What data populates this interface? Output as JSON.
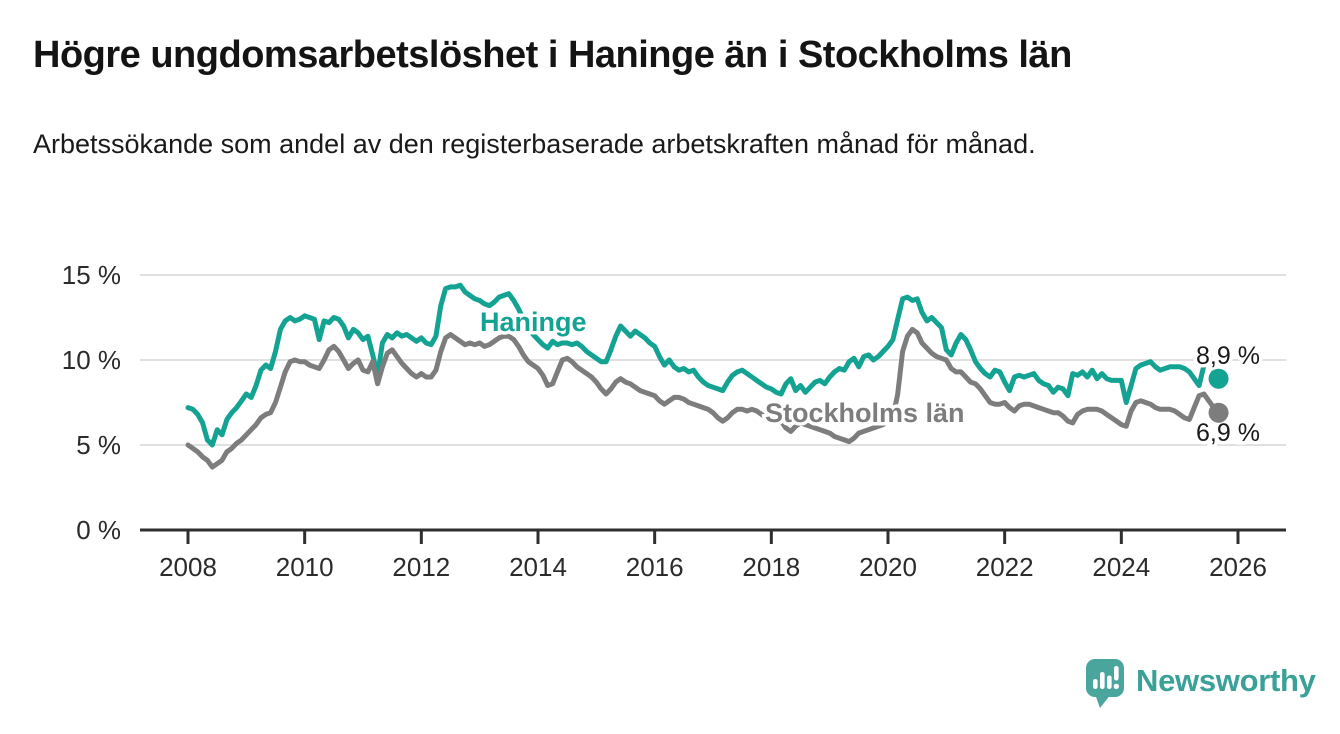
{
  "header": {
    "title": "Högre ungdomsarbetslöshet i Haninge än i Stockholms län",
    "subtitle": "Arbetssökande som andel av den registerbaserade arbetskraften månad för månad."
  },
  "footer": {
    "logo_text": "Newsworthy",
    "logo_icon": "speech-bubble-bar-chart-exclamation",
    "logo_color": "#4aa59d"
  },
  "chart_data": {
    "type": "line",
    "unit": "%",
    "frequency": "monthly",
    "x_start": "2008-01",
    "x_end": "2025-09",
    "xlim": [
      2007.2,
      2026.8
    ],
    "ylim": [
      0,
      15.5
    ],
    "grid": "horizontal",
    "legend": "inline-labels",
    "y_ticks": [
      {
        "value": 0,
        "label": "0 %"
      },
      {
        "value": 5,
        "label": "5 %"
      },
      {
        "value": 10,
        "label": "10 %"
      },
      {
        "value": 15,
        "label": "15 %"
      }
    ],
    "x_ticks": [
      {
        "year": 2008,
        "label": "2008"
      },
      {
        "year": 2010,
        "label": "2010"
      },
      {
        "year": 2012,
        "label": "2012"
      },
      {
        "year": 2014,
        "label": "2014"
      },
      {
        "year": 2016,
        "label": "2016"
      },
      {
        "year": 2018,
        "label": "2018"
      },
      {
        "year": 2020,
        "label": "2020"
      },
      {
        "year": 2022,
        "label": "2022"
      },
      {
        "year": 2024,
        "label": "2024"
      },
      {
        "year": 2026,
        "label": "2026"
      }
    ],
    "series_labels": [
      {
        "text": "Haninge"
      },
      {
        "text": "Stockholms län"
      }
    ],
    "series": [
      {
        "name": "Haninge",
        "color": "#14a293",
        "end_value": 8.9,
        "end_label": "8,9 %",
        "values": [
          7.2,
          7.1,
          6.8,
          6.3,
          5.3,
          5.0,
          5.9,
          5.6,
          6.5,
          6.9,
          7.2,
          7.6,
          8.0,
          7.8,
          8.5,
          9.4,
          9.7,
          9.5,
          10.5,
          11.8,
          12.3,
          12.5,
          12.3,
          12.4,
          12.6,
          12.5,
          12.4,
          11.2,
          12.3,
          12.2,
          12.5,
          12.4,
          12.0,
          11.3,
          11.8,
          11.6,
          11.2,
          11.4,
          10.3,
          9.1,
          11.0,
          11.5,
          11.3,
          11.6,
          11.4,
          11.5,
          11.3,
          11.1,
          11.3,
          11.0,
          10.9,
          11.4,
          13.2,
          14.2,
          14.3,
          14.3,
          14.4,
          14.0,
          13.8,
          13.6,
          13.5,
          13.3,
          13.2,
          13.4,
          13.7,
          13.8,
          13.9,
          13.5,
          13.0,
          12.4,
          11.9,
          11.5,
          11.2,
          10.9,
          10.7,
          11.1,
          10.9,
          11.0,
          11.0,
          10.9,
          11.0,
          10.8,
          10.5,
          10.3,
          10.1,
          9.9,
          9.9,
          10.6,
          11.4,
          12.0,
          11.7,
          11.4,
          11.7,
          11.5,
          11.3,
          11.0,
          10.8,
          10.2,
          9.7,
          10.0,
          9.6,
          9.4,
          9.5,
          9.3,
          9.4,
          9.0,
          8.7,
          8.5,
          8.4,
          8.3,
          8.2,
          8.7,
          9.1,
          9.3,
          9.4,
          9.2,
          9.0,
          8.8,
          8.6,
          8.4,
          8.3,
          8.1,
          8.0,
          8.6,
          8.9,
          8.2,
          8.5,
          8.1,
          8.4,
          8.7,
          8.8,
          8.6,
          9.0,
          9.3,
          9.5,
          9.4,
          9.9,
          10.1,
          9.6,
          10.2,
          10.3,
          10.0,
          10.2,
          10.5,
          10.8,
          11.2,
          12.4,
          13.6,
          13.7,
          13.5,
          13.6,
          12.8,
          12.3,
          12.5,
          12.2,
          11.9,
          10.6,
          10.3,
          11.0,
          11.5,
          11.2,
          10.6,
          9.9,
          9.5,
          9.2,
          9.0,
          9.4,
          9.3,
          8.7,
          8.2,
          9.0,
          9.1,
          9.0,
          9.1,
          9.2,
          8.8,
          8.6,
          8.5,
          8.1,
          8.4,
          8.3,
          7.9,
          9.2,
          9.1,
          9.3,
          9.0,
          9.4,
          8.9,
          9.2,
          8.9,
          8.8,
          8.8,
          8.8,
          7.5,
          8.5,
          9.5,
          9.7,
          9.8,
          9.9,
          9.6,
          9.4,
          9.5,
          9.6,
          9.6,
          9.6,
          9.5,
          9.3,
          8.9,
          8.5,
          9.7,
          10.3,
          9.4,
          8.9
        ]
      },
      {
        "name": "Stockholms län",
        "color": "#7d7d7d",
        "end_value": 6.9,
        "end_label": "6,9 %",
        "values": [
          5.0,
          4.8,
          4.6,
          4.3,
          4.1,
          3.7,
          3.9,
          4.1,
          4.6,
          4.8,
          5.1,
          5.3,
          5.6,
          5.9,
          6.2,
          6.6,
          6.8,
          6.9,
          7.5,
          8.4,
          9.3,
          9.9,
          10.0,
          9.9,
          9.9,
          9.7,
          9.6,
          9.5,
          10.0,
          10.6,
          10.8,
          10.5,
          10.0,
          9.5,
          9.8,
          10.0,
          9.4,
          9.3,
          9.9,
          8.6,
          9.6,
          10.4,
          10.6,
          10.2,
          9.8,
          9.5,
          9.2,
          9.0,
          9.2,
          9.0,
          9.0,
          9.4,
          10.5,
          11.3,
          11.5,
          11.3,
          11.1,
          10.9,
          11.0,
          10.9,
          11.0,
          10.8,
          10.9,
          11.1,
          11.3,
          11.4,
          11.4,
          11.2,
          10.8,
          10.3,
          9.9,
          9.7,
          9.5,
          9.1,
          8.5,
          8.6,
          9.3,
          10.0,
          10.1,
          9.9,
          9.6,
          9.4,
          9.2,
          9.0,
          8.7,
          8.3,
          8.0,
          8.3,
          8.7,
          8.9,
          8.7,
          8.6,
          8.4,
          8.2,
          8.1,
          8.0,
          7.9,
          7.6,
          7.4,
          7.6,
          7.8,
          7.8,
          7.7,
          7.5,
          7.4,
          7.3,
          7.2,
          7.1,
          6.9,
          6.6,
          6.4,
          6.6,
          6.9,
          7.1,
          7.1,
          7.0,
          7.1,
          7.0,
          6.8,
          6.6,
          6.7,
          6.8,
          6.4,
          6.0,
          5.8,
          6.1,
          6.3,
          6.2,
          6.1,
          6.0,
          5.9,
          5.8,
          5.7,
          5.5,
          5.4,
          5.3,
          5.2,
          5.4,
          5.7,
          5.8,
          5.9,
          6.0,
          6.1,
          6.2,
          6.4,
          6.6,
          8.0,
          10.5,
          11.4,
          11.8,
          11.6,
          11.0,
          10.7,
          10.4,
          10.2,
          10.1,
          10.0,
          9.5,
          9.3,
          9.3,
          9.0,
          8.7,
          8.6,
          8.3,
          7.9,
          7.5,
          7.4,
          7.4,
          7.5,
          7.2,
          7.0,
          7.3,
          7.4,
          7.4,
          7.3,
          7.2,
          7.1,
          7.0,
          6.9,
          6.9,
          6.7,
          6.4,
          6.3,
          6.8,
          7.0,
          7.1,
          7.1,
          7.1,
          7.0,
          6.8,
          6.6,
          6.4,
          6.2,
          6.1,
          7.0,
          7.5,
          7.6,
          7.5,
          7.4,
          7.2,
          7.1,
          7.1,
          7.1,
          7.0,
          6.8,
          6.6,
          6.5,
          7.2,
          7.9,
          8.0,
          7.6,
          7.2,
          6.9
        ]
      }
    ]
  }
}
